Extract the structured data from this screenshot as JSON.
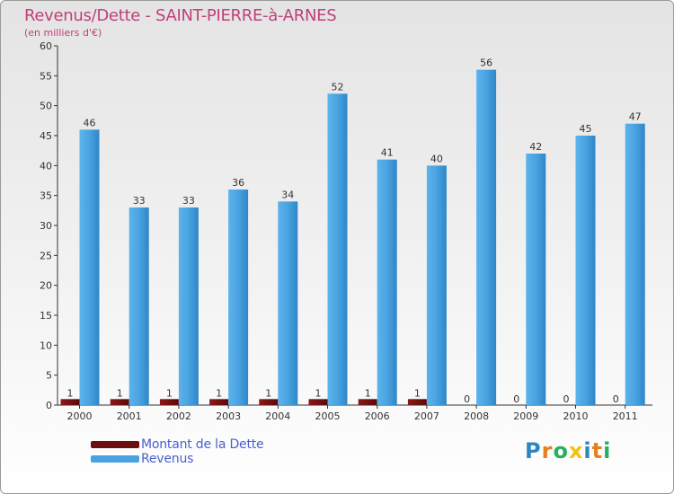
{
  "title": "Revenus/Dette - SAINT-PIERRE-à-ARNES",
  "subtitle": "(en milliers d'€)",
  "colors": {
    "title": "#c0407a",
    "dette": "#6b0e0e",
    "revenus": "#4aa3e0",
    "legend_text": "#4a5fd0",
    "axis": "#333333"
  },
  "legend": [
    {
      "label": "Montant de la Dette",
      "color": "#6b0e0e"
    },
    {
      "label": "Revenus",
      "color": "#4aa3e0"
    }
  ],
  "logo": {
    "letters": [
      "P",
      "r",
      "o",
      "x",
      "i",
      "t",
      "i"
    ],
    "colors": [
      "#2e86c1",
      "#e67e22",
      "#27ae60",
      "#f1c40f",
      "#2e86c1",
      "#e67e22",
      "#27ae60"
    ]
  },
  "chart_data": {
    "type": "bar",
    "title": "Revenus/Dette - SAINT-PIERRE-à-ARNES",
    "ylabel": "(en milliers d'€)",
    "xlabel": "",
    "categories": [
      "2000",
      "2001",
      "2002",
      "2003",
      "2004",
      "2005",
      "2006",
      "2007",
      "2008",
      "2009",
      "2010",
      "2011"
    ],
    "series": [
      {
        "name": "Montant de la Dette",
        "values": [
          1,
          1,
          1,
          1,
          1,
          1,
          1,
          1,
          0,
          0,
          0,
          0
        ]
      },
      {
        "name": "Revenus",
        "values": [
          46,
          33,
          33,
          36,
          34,
          52,
          41,
          40,
          56,
          42,
          45,
          47
        ]
      }
    ],
    "ylim": [
      0,
      60
    ],
    "yticks": [
      0,
      5,
      10,
      15,
      20,
      25,
      30,
      35,
      40,
      45,
      50,
      55,
      60
    ],
    "grid": false,
    "legend_position": "bottom-left"
  }
}
